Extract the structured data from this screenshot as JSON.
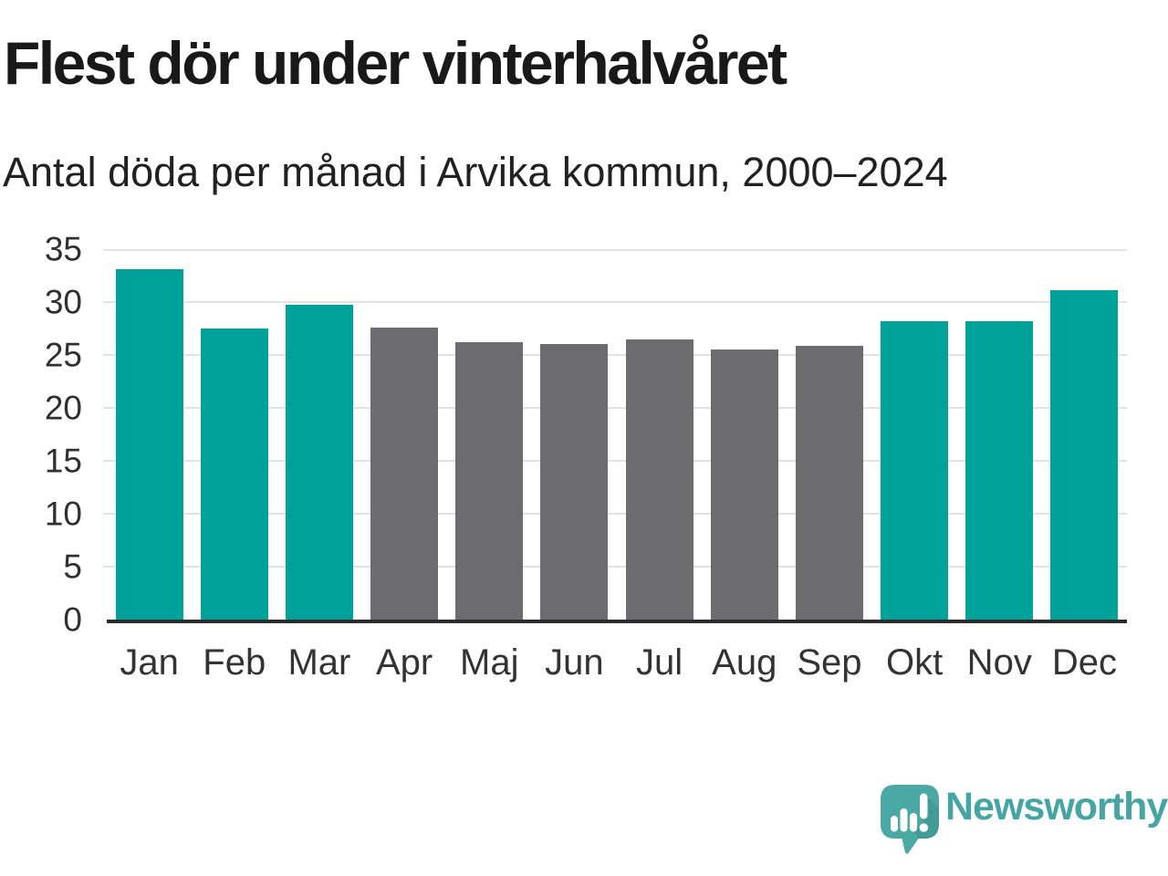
{
  "chart_data": {
    "type": "bar",
    "title": "Flest dör under vinterhalvåret",
    "subtitle": "Antal döda per månad i Arvika kommun, 2000–2024",
    "categories": [
      "Jan",
      "Feb",
      "Mar",
      "Apr",
      "Maj",
      "Jun",
      "Jul",
      "Aug",
      "Sep",
      "Okt",
      "Nov",
      "Dec"
    ],
    "values": [
      33.1,
      27.5,
      29.7,
      27.6,
      26.2,
      26.0,
      26.5,
      25.5,
      25.9,
      28.2,
      28.2,
      31.1
    ],
    "bar_color_keys": [
      "winter",
      "winter",
      "winter",
      "summer",
      "summer",
      "summer",
      "summer",
      "summer",
      "summer",
      "winter",
      "winter",
      "winter"
    ],
    "palette": {
      "winter": "#00a29a",
      "summer": "#6c6c70"
    },
    "xlabel": "",
    "ylabel": "",
    "ylim": [
      0,
      35
    ],
    "yticks": [
      0,
      5,
      10,
      15,
      20,
      25,
      30,
      35
    ],
    "grid": true,
    "legend": "none",
    "grid_color": "#e2e2e2",
    "axis_color": "#2b2b2b",
    "tick_label_color": "#333333"
  },
  "footer": {
    "brand_label": "Newsworthy",
    "brand_text_color": "#44a5a2",
    "logo_mark_color": "#4aa9a4",
    "logo_icon": "speech-bubble-with-bar-chart-and-exclamation"
  }
}
